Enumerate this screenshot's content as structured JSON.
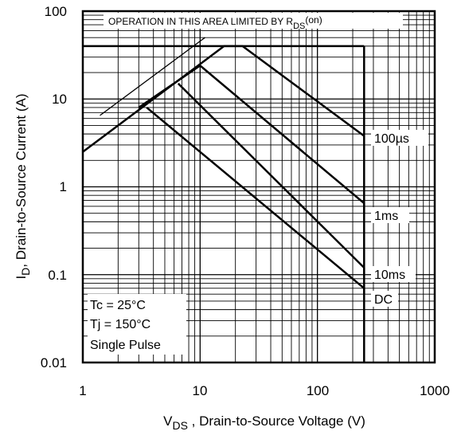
{
  "chart_data": {
    "type": "line",
    "x_scale": "log",
    "y_scale": "log",
    "xlim": [
      1,
      1000
    ],
    "ylim": [
      0.01,
      100
    ],
    "grid": true,
    "x_ticks": [
      "1",
      "10",
      "100",
      "1000"
    ],
    "y_ticks": [
      "100",
      "10",
      "1",
      "0.1",
      "0.01"
    ],
    "xlabel": {
      "symbol": "V",
      "subscript": "DS",
      "text": " , Drain-to-Source Voltage (V)"
    },
    "ylabel": {
      "symbol": "I",
      "subscript": "D",
      "text": ",  Drain-to-Source Current (A)"
    },
    "limit_note": {
      "text": "OPERATION IN THIS AREA LIMITED BY R",
      "subscript": "DS",
      "suffix": "(on)"
    },
    "rds_limit_line": {
      "x": [
        1.4,
        11
      ],
      "y": [
        6.5,
        50
      ]
    },
    "current_limit_A": 40,
    "voltage_limit_V": 250,
    "series": [
      {
        "name": "100µs",
        "x": [
          1,
          16,
          23,
          250
        ],
        "y": [
          2.5,
          40,
          40,
          3.8
        ]
      },
      {
        "name": "1ms",
        "x": [
          3,
          10,
          250,
          250
        ],
        "y": [
          8,
          24,
          0.65,
          0.5
        ]
      },
      {
        "name": "10ms",
        "x": [
          6.5,
          250,
          250
        ],
        "y": [
          15,
          0.12,
          0.1
        ]
      },
      {
        "name": "DC",
        "x": [
          3.5,
          250,
          250
        ],
        "y": [
          8,
          0.07,
          0.06
        ]
      }
    ],
    "annotations": [
      "Tc = 25°C",
      "Tj = 150°C",
      "Single Pulse"
    ]
  }
}
